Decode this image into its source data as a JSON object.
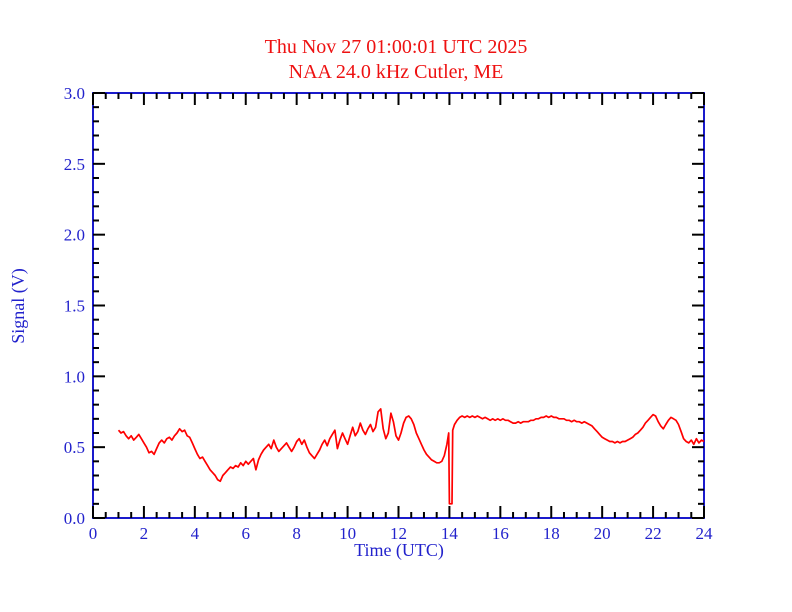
{
  "colors": {
    "title": "#ee1111",
    "series": "#ff0000",
    "frame": "#1a1acc",
    "ticks": "#000000",
    "labels": "#2222cc",
    "background": "#ffffff"
  },
  "chart_data": {
    "type": "line",
    "title": "Thu Nov 27 01:00:01 UTC 2025",
    "subtitle": "NAA 24.0 kHz Cutler, ME",
    "xlabel": "Time (UTC)",
    "ylabel": "Signal (V)",
    "xlim": [
      0,
      24
    ],
    "ylim": [
      0,
      3
    ],
    "x_major_step": 2,
    "x_minor_step": 0.5,
    "y_major_step": 0.5,
    "y_minor_step": 0.1,
    "x_tick_labels": [
      "0",
      "2",
      "4",
      "6",
      "8",
      "10",
      "12",
      "14",
      "16",
      "18",
      "20",
      "22",
      "24"
    ],
    "y_tick_labels": [
      "0.0",
      "0.5",
      "1.0",
      "1.5",
      "2.0",
      "2.5",
      "3.0"
    ],
    "grid": false,
    "legend": null,
    "series": [
      {
        "name": "NAA 24.0 kHz signal strength",
        "color": "#ff0000",
        "points": [
          [
            1.0,
            0.62
          ],
          [
            1.1,
            0.6
          ],
          [
            1.2,
            0.61
          ],
          [
            1.3,
            0.58
          ],
          [
            1.4,
            0.56
          ],
          [
            1.5,
            0.58
          ],
          [
            1.6,
            0.55
          ],
          [
            1.7,
            0.57
          ],
          [
            1.8,
            0.59
          ],
          [
            1.9,
            0.56
          ],
          [
            2.0,
            0.53
          ],
          [
            2.1,
            0.5
          ],
          [
            2.2,
            0.46
          ],
          [
            2.3,
            0.47
          ],
          [
            2.4,
            0.45
          ],
          [
            2.5,
            0.49
          ],
          [
            2.6,
            0.53
          ],
          [
            2.7,
            0.55
          ],
          [
            2.8,
            0.53
          ],
          [
            2.9,
            0.56
          ],
          [
            3.0,
            0.57
          ],
          [
            3.1,
            0.55
          ],
          [
            3.2,
            0.58
          ],
          [
            3.3,
            0.6
          ],
          [
            3.4,
            0.63
          ],
          [
            3.5,
            0.61
          ],
          [
            3.6,
            0.62
          ],
          [
            3.7,
            0.58
          ],
          [
            3.8,
            0.57
          ],
          [
            3.9,
            0.53
          ],
          [
            4.0,
            0.49
          ],
          [
            4.1,
            0.45
          ],
          [
            4.2,
            0.42
          ],
          [
            4.3,
            0.43
          ],
          [
            4.4,
            0.4
          ],
          [
            4.5,
            0.37
          ],
          [
            4.6,
            0.34
          ],
          [
            4.7,
            0.32
          ],
          [
            4.8,
            0.3
          ],
          [
            4.9,
            0.27
          ],
          [
            5.0,
            0.26
          ],
          [
            5.1,
            0.3
          ],
          [
            5.2,
            0.32
          ],
          [
            5.3,
            0.34
          ],
          [
            5.4,
            0.36
          ],
          [
            5.5,
            0.35
          ],
          [
            5.6,
            0.37
          ],
          [
            5.7,
            0.36
          ],
          [
            5.8,
            0.39
          ],
          [
            5.9,
            0.37
          ],
          [
            6.0,
            0.4
          ],
          [
            6.1,
            0.38
          ],
          [
            6.2,
            0.4
          ],
          [
            6.3,
            0.42
          ],
          [
            6.4,
            0.34
          ],
          [
            6.5,
            0.41
          ],
          [
            6.6,
            0.45
          ],
          [
            6.7,
            0.48
          ],
          [
            6.8,
            0.5
          ],
          [
            6.9,
            0.52
          ],
          [
            7.0,
            0.49
          ],
          [
            7.1,
            0.55
          ],
          [
            7.2,
            0.5
          ],
          [
            7.3,
            0.47
          ],
          [
            7.4,
            0.49
          ],
          [
            7.5,
            0.51
          ],
          [
            7.6,
            0.53
          ],
          [
            7.7,
            0.5
          ],
          [
            7.8,
            0.47
          ],
          [
            7.9,
            0.5
          ],
          [
            8.0,
            0.54
          ],
          [
            8.1,
            0.56
          ],
          [
            8.2,
            0.52
          ],
          [
            8.3,
            0.55
          ],
          [
            8.4,
            0.5
          ],
          [
            8.5,
            0.46
          ],
          [
            8.6,
            0.44
          ],
          [
            8.7,
            0.42
          ],
          [
            8.8,
            0.45
          ],
          [
            8.9,
            0.48
          ],
          [
            9.0,
            0.52
          ],
          [
            9.1,
            0.55
          ],
          [
            9.2,
            0.51
          ],
          [
            9.3,
            0.56
          ],
          [
            9.4,
            0.59
          ],
          [
            9.5,
            0.62
          ],
          [
            9.6,
            0.49
          ],
          [
            9.7,
            0.55
          ],
          [
            9.8,
            0.6
          ],
          [
            9.9,
            0.56
          ],
          [
            10.0,
            0.52
          ],
          [
            10.1,
            0.58
          ],
          [
            10.2,
            0.64
          ],
          [
            10.3,
            0.58
          ],
          [
            10.4,
            0.61
          ],
          [
            10.5,
            0.67
          ],
          [
            10.6,
            0.62
          ],
          [
            10.7,
            0.59
          ],
          [
            10.8,
            0.63
          ],
          [
            10.9,
            0.66
          ],
          [
            11.0,
            0.61
          ],
          [
            11.1,
            0.64
          ],
          [
            11.2,
            0.75
          ],
          [
            11.3,
            0.77
          ],
          [
            11.4,
            0.63
          ],
          [
            11.5,
            0.56
          ],
          [
            11.6,
            0.6
          ],
          [
            11.7,
            0.74
          ],
          [
            11.8,
            0.68
          ],
          [
            11.9,
            0.58
          ],
          [
            12.0,
            0.55
          ],
          [
            12.1,
            0.6
          ],
          [
            12.2,
            0.67
          ],
          [
            12.3,
            0.71
          ],
          [
            12.4,
            0.72
          ],
          [
            12.5,
            0.7
          ],
          [
            12.6,
            0.66
          ],
          [
            12.7,
            0.6
          ],
          [
            12.8,
            0.56
          ],
          [
            12.9,
            0.52
          ],
          [
            13.0,
            0.48
          ],
          [
            13.1,
            0.45
          ],
          [
            13.2,
            0.43
          ],
          [
            13.3,
            0.41
          ],
          [
            13.4,
            0.4
          ],
          [
            13.5,
            0.39
          ],
          [
            13.6,
            0.39
          ],
          [
            13.7,
            0.4
          ],
          [
            13.8,
            0.44
          ],
          [
            13.9,
            0.52
          ],
          [
            13.97,
            0.6
          ],
          [
            14.0,
            0.1
          ],
          [
            14.1,
            0.1
          ],
          [
            14.13,
            0.62
          ],
          [
            14.2,
            0.66
          ],
          [
            14.3,
            0.69
          ],
          [
            14.4,
            0.71
          ],
          [
            14.5,
            0.72
          ],
          [
            14.6,
            0.71
          ],
          [
            14.7,
            0.72
          ],
          [
            14.8,
            0.71
          ],
          [
            14.9,
            0.72
          ],
          [
            15.0,
            0.71
          ],
          [
            15.1,
            0.72
          ],
          [
            15.2,
            0.71
          ],
          [
            15.3,
            0.7
          ],
          [
            15.4,
            0.71
          ],
          [
            15.5,
            0.7
          ],
          [
            15.6,
            0.69
          ],
          [
            15.7,
            0.7
          ],
          [
            15.8,
            0.69
          ],
          [
            15.9,
            0.7
          ],
          [
            16.0,
            0.69
          ],
          [
            16.1,
            0.7
          ],
          [
            16.2,
            0.69
          ],
          [
            16.3,
            0.69
          ],
          [
            16.4,
            0.68
          ],
          [
            16.5,
            0.67
          ],
          [
            16.6,
            0.67
          ],
          [
            16.7,
            0.68
          ],
          [
            16.8,
            0.67
          ],
          [
            16.9,
            0.68
          ],
          [
            17.0,
            0.68
          ],
          [
            17.1,
            0.68
          ],
          [
            17.2,
            0.69
          ],
          [
            17.3,
            0.69
          ],
          [
            17.4,
            0.7
          ],
          [
            17.5,
            0.7
          ],
          [
            17.6,
            0.71
          ],
          [
            17.7,
            0.71
          ],
          [
            17.8,
            0.72
          ],
          [
            17.9,
            0.71
          ],
          [
            18.0,
            0.72
          ],
          [
            18.1,
            0.71
          ],
          [
            18.2,
            0.71
          ],
          [
            18.3,
            0.7
          ],
          [
            18.4,
            0.7
          ],
          [
            18.5,
            0.7
          ],
          [
            18.6,
            0.69
          ],
          [
            18.7,
            0.69
          ],
          [
            18.8,
            0.68
          ],
          [
            18.9,
            0.69
          ],
          [
            19.0,
            0.68
          ],
          [
            19.1,
            0.68
          ],
          [
            19.2,
            0.67
          ],
          [
            19.3,
            0.68
          ],
          [
            19.4,
            0.67
          ],
          [
            19.5,
            0.66
          ],
          [
            19.6,
            0.65
          ],
          [
            19.7,
            0.63
          ],
          [
            19.8,
            0.61
          ],
          [
            19.9,
            0.59
          ],
          [
            20.0,
            0.57
          ],
          [
            20.1,
            0.56
          ],
          [
            20.2,
            0.55
          ],
          [
            20.3,
            0.54
          ],
          [
            20.4,
            0.54
          ],
          [
            20.5,
            0.53
          ],
          [
            20.6,
            0.54
          ],
          [
            20.7,
            0.53
          ],
          [
            20.8,
            0.54
          ],
          [
            20.9,
            0.54
          ],
          [
            21.0,
            0.55
          ],
          [
            21.1,
            0.56
          ],
          [
            21.2,
            0.57
          ],
          [
            21.3,
            0.59
          ],
          [
            21.4,
            0.6
          ],
          [
            21.5,
            0.62
          ],
          [
            21.6,
            0.64
          ],
          [
            21.7,
            0.67
          ],
          [
            21.8,
            0.69
          ],
          [
            21.9,
            0.71
          ],
          [
            22.0,
            0.73
          ],
          [
            22.1,
            0.72
          ],
          [
            22.2,
            0.68
          ],
          [
            22.3,
            0.65
          ],
          [
            22.4,
            0.63
          ],
          [
            22.5,
            0.66
          ],
          [
            22.6,
            0.69
          ],
          [
            22.7,
            0.71
          ],
          [
            22.8,
            0.7
          ],
          [
            22.9,
            0.69
          ],
          [
            23.0,
            0.66
          ],
          [
            23.1,
            0.61
          ],
          [
            23.2,
            0.56
          ],
          [
            23.3,
            0.54
          ],
          [
            23.4,
            0.53
          ],
          [
            23.5,
            0.55
          ],
          [
            23.6,
            0.52
          ],
          [
            23.7,
            0.56
          ],
          [
            23.8,
            0.53
          ],
          [
            23.9,
            0.55
          ],
          [
            24.0,
            0.54
          ]
        ]
      }
    ]
  }
}
